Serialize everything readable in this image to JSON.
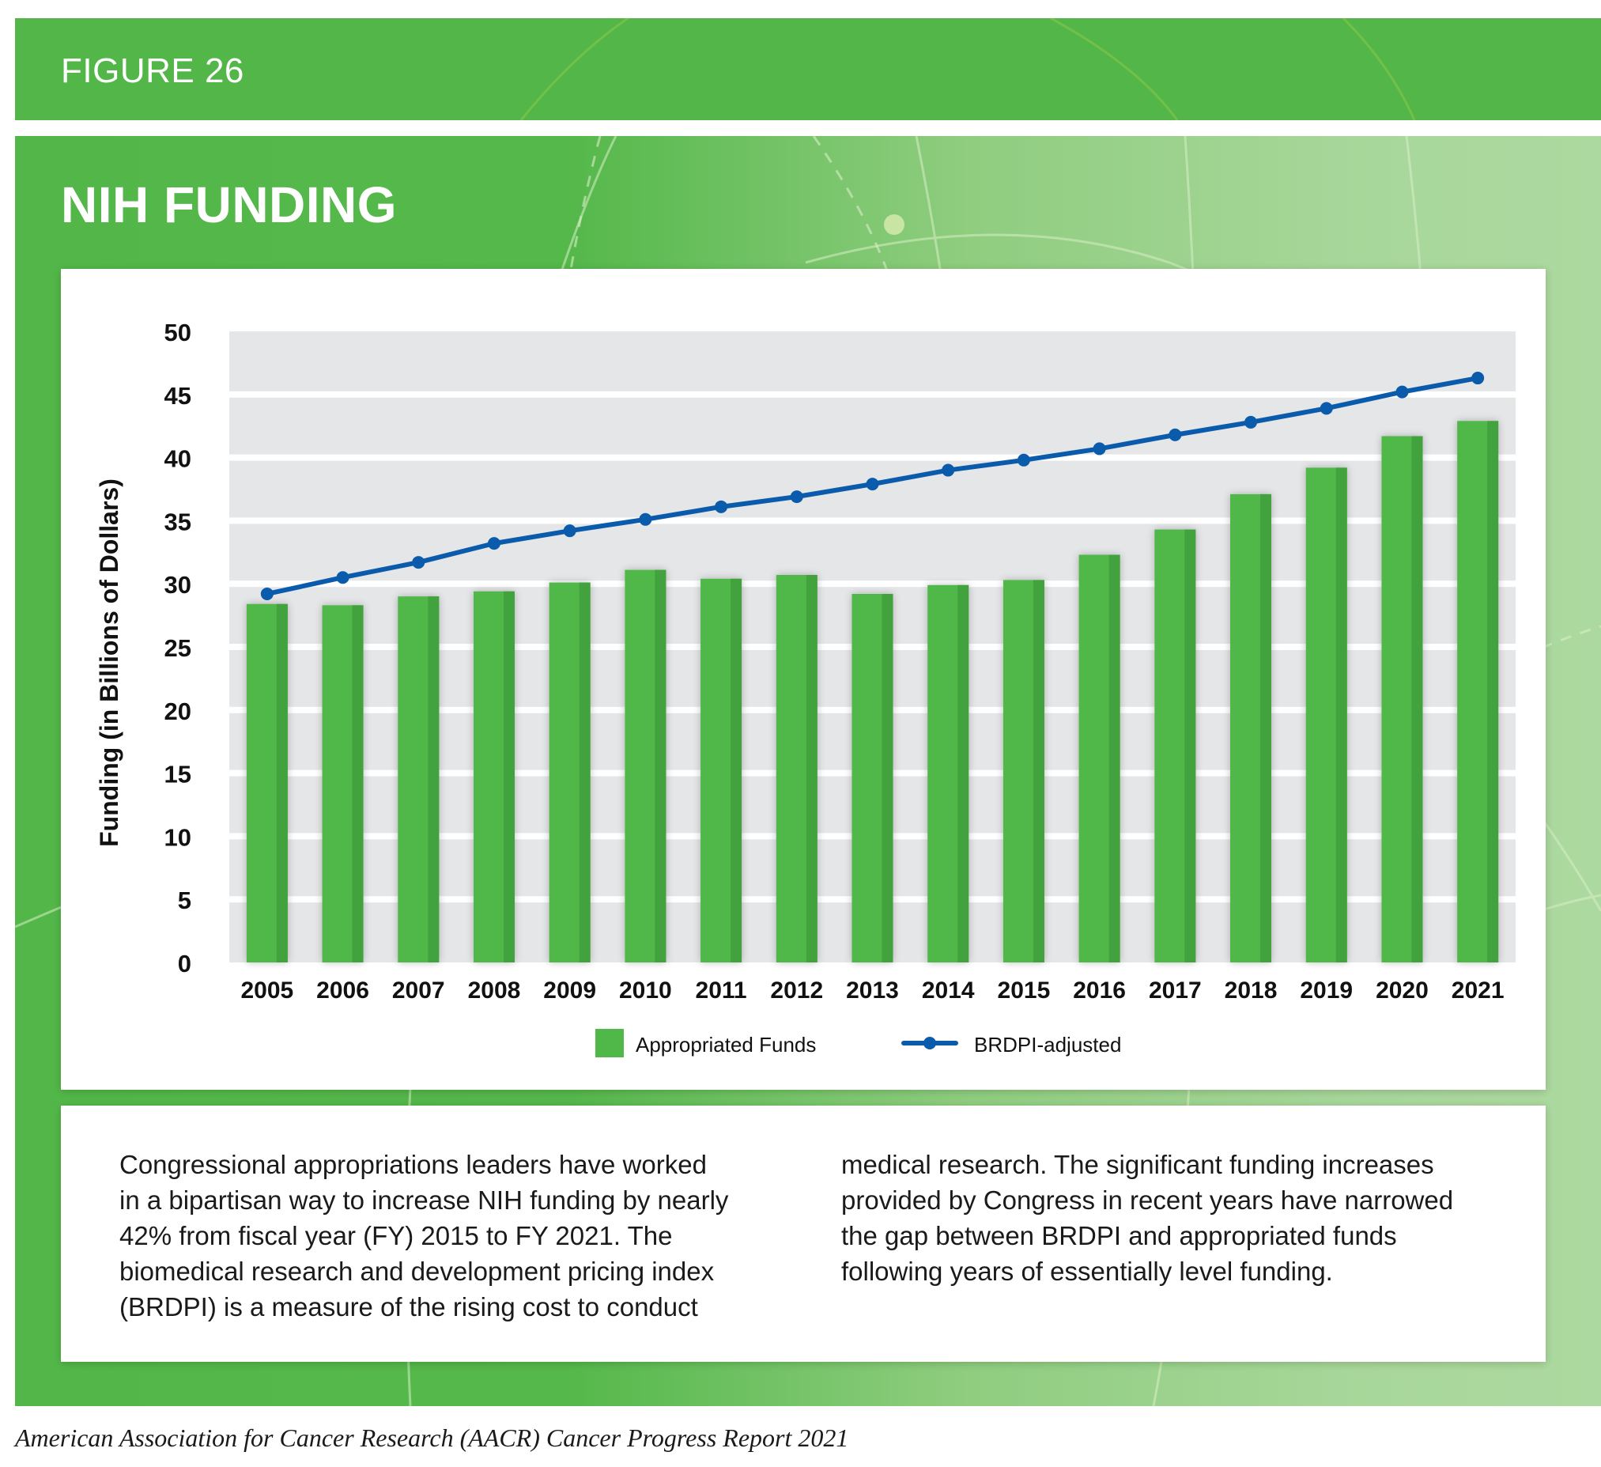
{
  "figure_label": "FIGURE 26",
  "title": "NIH FUNDING",
  "colors": {
    "brand_green": "#52b748",
    "bar_green": "#50b848",
    "bar_shade": "#43a23d",
    "line_blue": "#0a5bab",
    "plot_bg": "#e5e6e8",
    "grid": "#ffffff"
  },
  "chart_data": {
    "type": "bar",
    "title": "NIH FUNDING",
    "xlabel": "",
    "ylabel": "Funding (in Billions of Dollars)",
    "ylim": [
      0,
      50
    ],
    "yticks": [
      0,
      5,
      10,
      15,
      20,
      25,
      30,
      35,
      40,
      45,
      50
    ],
    "grid": true,
    "legend_position": "bottom-center",
    "categories": [
      "2005",
      "2006",
      "2007",
      "2008",
      "2009",
      "2010",
      "2011",
      "2012",
      "2013",
      "2014",
      "2015",
      "2016",
      "2017",
      "2018",
      "2019",
      "2020",
      "2021"
    ],
    "series": [
      {
        "name": "Appropriated Funds",
        "type": "bar",
        "values": [
          28.4,
          28.3,
          29.0,
          29.4,
          30.1,
          31.1,
          30.4,
          30.7,
          29.2,
          29.9,
          30.3,
          32.3,
          34.3,
          37.1,
          39.2,
          41.7,
          42.9
        ]
      },
      {
        "name": "BRDPI-adjusted",
        "type": "line",
        "values": [
          29.2,
          30.5,
          31.7,
          33.2,
          34.2,
          35.1,
          36.1,
          36.9,
          37.9,
          39.0,
          39.8,
          40.7,
          41.8,
          42.8,
          43.9,
          45.2,
          46.3
        ]
      }
    ]
  },
  "description": {
    "left_lines": [
      "Congressional appropriations leaders have worked",
      "in a bipartisan way to increase NIH funding by nearly",
      "42% from fiscal year (FY) 2015 to FY 2021. The",
      "biomedical research and development pricing index",
      "(BRDPI) is a measure of the rising cost to conduct"
    ],
    "right_lines": [
      "medical research. The significant funding increases",
      "provided by Congress in recent years have narrowed",
      "the gap between BRDPI and appropriated funds",
      "following years of essentially level funding."
    ]
  },
  "citation": "American Association for Cancer Research (AACR) Cancer Progress Report 2021"
}
